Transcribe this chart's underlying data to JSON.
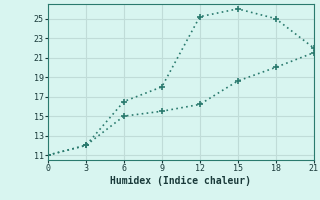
{
  "xlabel": "Humidex (Indice chaleur)",
  "bg_color": "#d8f5f0",
  "line_color": "#2a7a6e",
  "grid_color": "#c0dcd8",
  "x_ticks": [
    0,
    3,
    6,
    9,
    12,
    15,
    18,
    21
  ],
  "y_ticks": [
    11,
    13,
    15,
    17,
    19,
    21,
    23,
    25
  ],
  "xlim": [
    0,
    21
  ],
  "ylim": [
    10.5,
    26.5
  ],
  "line1_x": [
    0,
    3,
    6,
    9,
    12,
    15,
    18,
    21
  ],
  "line1_y": [
    11,
    12,
    16.5,
    18.0,
    25.2,
    26.0,
    25.0,
    22.0
  ],
  "line2_x": [
    0,
    3,
    6,
    9,
    12,
    15,
    18,
    21
  ],
  "line2_y": [
    11,
    12,
    15.0,
    15.5,
    16.2,
    18.6,
    20.0,
    21.5
  ]
}
